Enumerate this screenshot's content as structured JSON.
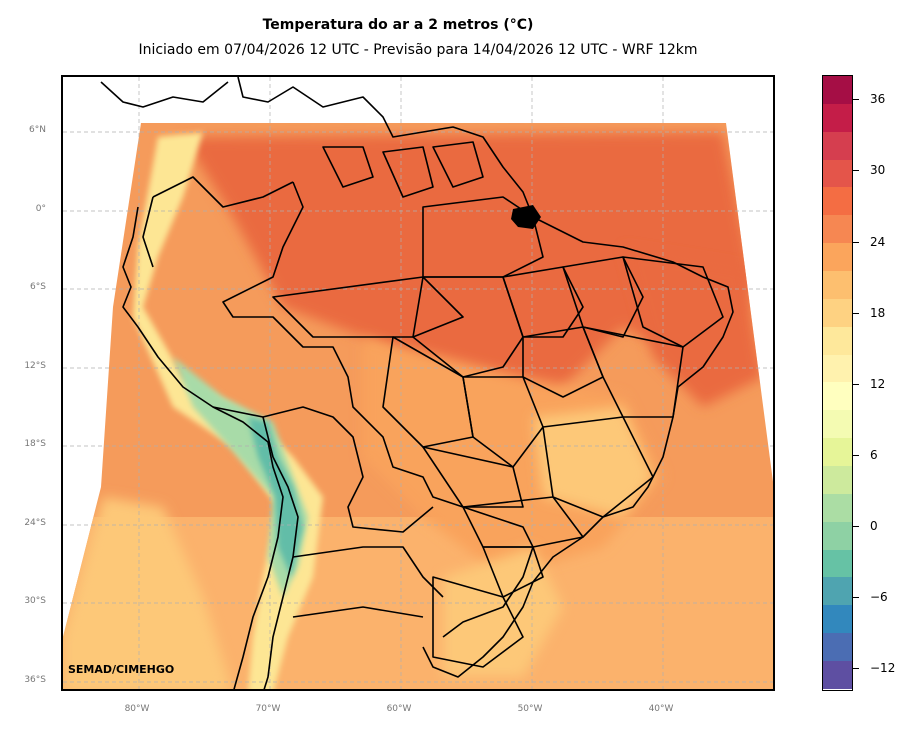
{
  "title": "Temperatura do ar a 2 metros (°C)",
  "subtitle": "Iniciado em 07/04/2026 12 UTC - Previsão para 14/04/2026 12 UTC - WRF 12km",
  "credit": "SEMAD/CIMEHGO",
  "lat_labels": [
    "6°N",
    "0°",
    "6°S",
    "12°S",
    "18°S",
    "24°S",
    "30°S",
    "36°S"
  ],
  "lon_labels": [
    "80°W",
    "70°W",
    "60°W",
    "50°W",
    "40°W"
  ],
  "colorbar": {
    "unit": "°C",
    "tick_labels": [
      "36",
      "30",
      "24",
      "18",
      "12",
      "6",
      "0",
      "−6",
      "−12"
    ],
    "levels_top_to_bottom": [
      "#a50e45",
      "#c41d48",
      "#d53e4f",
      "#e4554a",
      "#f46d43",
      "#f68752",
      "#fba55c",
      "#fdbf6f",
      "#fed282",
      "#fee89b",
      "#fff2ae",
      "#ffffbf",
      "#f4fbb2",
      "#e6f598",
      "#cdea9d",
      "#abdda4",
      "#8ed1a4",
      "#66c2a5",
      "#4fa4b0",
      "#3288bd",
      "#4b6db3",
      "#5e4fa2"
    ]
  },
  "map_colors": {
    "hot": "#ea6a40",
    "warm": "#f4834d",
    "mild": "#f9a35c",
    "cool": "#fdc878",
    "cold": "#fde694",
    "green": "#a8dba8",
    "teal": "#62bda8",
    "ocean": "#f59b5b",
    "ocean_south": "#fdb870",
    "border": "#000000",
    "grid": "#b0b0b0"
  }
}
